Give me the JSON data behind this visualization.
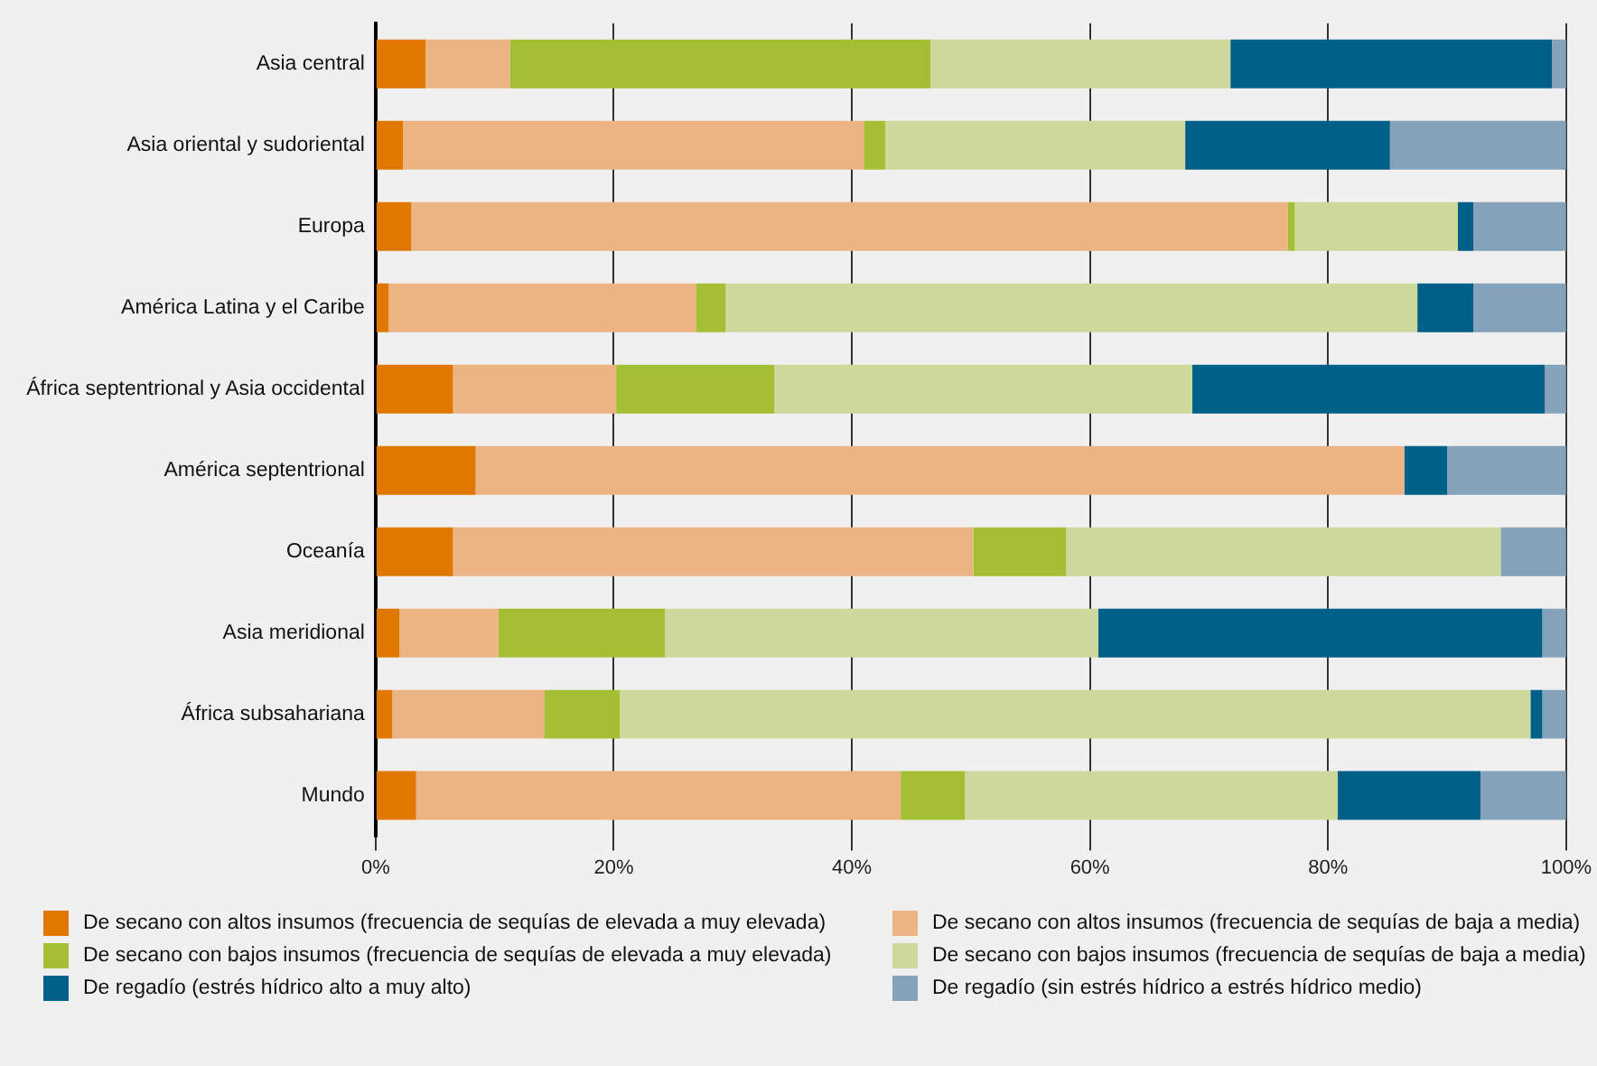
{
  "chart_data": {
    "type": "bar",
    "orientation": "horizontal",
    "stacked": true,
    "grid": "x",
    "legend": "bottom",
    "categories": [
      "Asia central",
      "Asia oriental y sudoriental",
      "Europa",
      "América Latina y el Caribe",
      "África septentrional y Asia occidental",
      "América septentrional",
      "Oceanía",
      "Asia meridional",
      "África subsahariana",
      "Mundo"
    ],
    "xlim": [
      0,
      100
    ],
    "xticks": [
      {
        "value": 0,
        "label": "0%"
      },
      {
        "value": 20,
        "label": "20%"
      },
      {
        "value": 40,
        "label": "40%"
      },
      {
        "value": 60,
        "label": "60%"
      },
      {
        "value": 80,
        "label": "80%"
      },
      {
        "value": 100,
        "label": "100%"
      }
    ],
    "series": [
      {
        "name": "De secano con altos insumos (frecuencia de sequías de elevada a muy elevada)",
        "color": "#e07800",
        "values": [
          4.2,
          2.3,
          3.0,
          1.1,
          6.5,
          8.4,
          6.5,
          2.0,
          1.4,
          3.4
        ]
      },
      {
        "name": "De secano con altos insumos (frecuencia de sequías de baja a media)",
        "color": "#edb483",
        "values": [
          7.1,
          38.7,
          73.6,
          25.8,
          13.7,
          78.0,
          43.7,
          8.3,
          12.8,
          40.7
        ]
      },
      {
        "name": "De secano con bajos insumos (frecuencia de sequías de elevada a muy elevada)",
        "color": "#a5bf34",
        "values": [
          35.3,
          1.8,
          0.6,
          2.5,
          13.3,
          0,
          7.8,
          14.0,
          6.3,
          5.4
        ]
      },
      {
        "name": "De secano con bajos insumos (frecuencia de sequías de baja a media)",
        "color": "#cdd89c",
        "values": [
          25.2,
          25.2,
          13.7,
          58.1,
          35.1,
          0,
          36.5,
          36.4,
          76.5,
          31.3
        ]
      },
      {
        "name": "De regadío (estrés hídrico alto a muy alto)",
        "color": "#006088",
        "values": [
          27.0,
          17.2,
          1.3,
          4.7,
          29.6,
          3.6,
          0,
          37.3,
          1.0,
          12.0
        ]
      },
      {
        "name": "De regadío (sin estrés hídrico a estrés hídrico medio)",
        "color": "#84a2ba",
        "values": [
          1.2,
          14.8,
          7.8,
          7.8,
          1.8,
          10.0,
          5.5,
          2.0,
          2.0,
          7.2
        ]
      }
    ]
  }
}
